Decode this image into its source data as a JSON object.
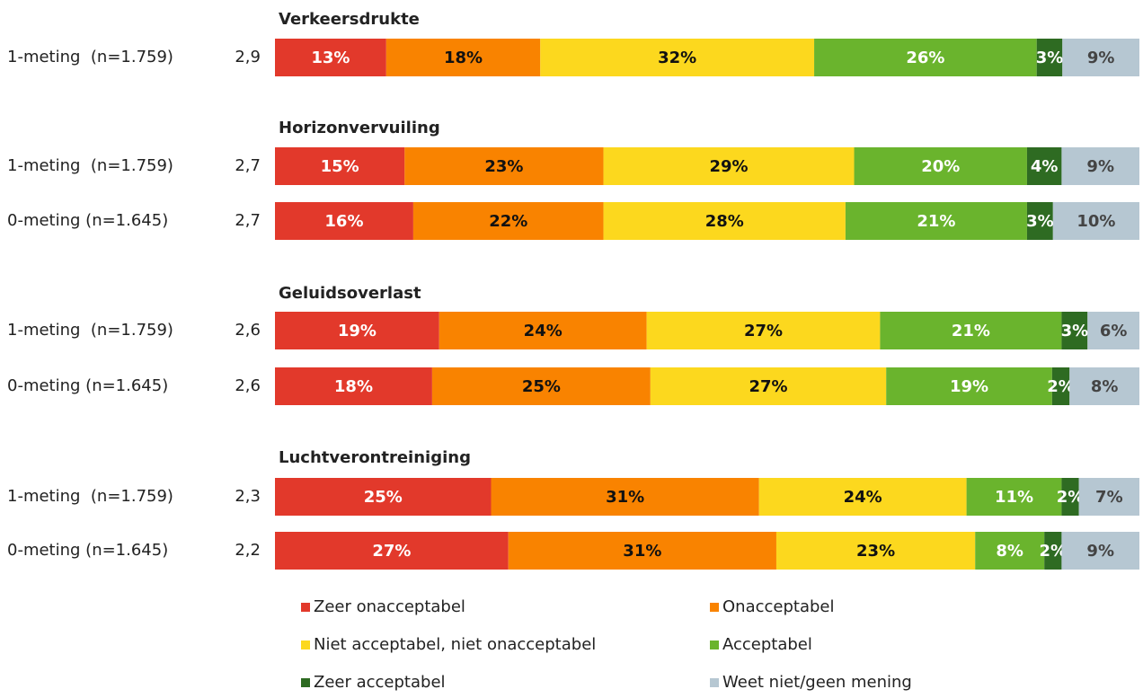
{
  "chart_data": [
    {
      "type": "stacked-bar",
      "title": "Verkeersdrukte",
      "categories": [
        "1-meting  (n=1.759)"
      ],
      "scores": [
        "2,9"
      ],
      "series": [
        {
          "name": "Zeer onacceptabel",
          "color": "#e2392b",
          "values": [
            13
          ],
          "value_labels": [
            "13%"
          ]
        },
        {
          "name": "Onacceptabel",
          "color": "#f98300",
          "values": [
            18
          ],
          "value_labels": [
            "18%"
          ]
        },
        {
          "name": "Niet acceptabel, niet onacceptabel",
          "color": "#fcd81e",
          "values": [
            32
          ],
          "value_labels": [
            "32%"
          ]
        },
        {
          "name": "Acceptabel",
          "color": "#6ab42d",
          "values": [
            26
          ],
          "value_labels": [
            "26%"
          ]
        },
        {
          "name": "Zeer acceptabel",
          "color": "#2e6b22",
          "values": [
            3
          ],
          "value_labels": [
            "3%"
          ]
        },
        {
          "name": "Weet niet/geen mening",
          "color": "#b6c7d2",
          "values": [
            9
          ],
          "value_labels": [
            "9%"
          ]
        }
      ]
    },
    {
      "type": "stacked-bar",
      "title": "Horizonvervuiling",
      "categories": [
        "1-meting  (n=1.759)",
        "0-meting (n=1.645)"
      ],
      "scores": [
        "2,7",
        "2,7"
      ],
      "series": [
        {
          "name": "Zeer onacceptabel",
          "color": "#e2392b",
          "values": [
            15,
            16
          ],
          "value_labels": [
            "15%",
            "16%"
          ]
        },
        {
          "name": "Onacceptabel",
          "color": "#f98300",
          "values": [
            23,
            22
          ],
          "value_labels": [
            "23%",
            "22%"
          ]
        },
        {
          "name": "Niet acceptabel, niet onacceptabel",
          "color": "#fcd81e",
          "values": [
            29,
            28
          ],
          "value_labels": [
            "29%",
            "28%"
          ]
        },
        {
          "name": "Acceptabel",
          "color": "#6ab42d",
          "values": [
            20,
            21
          ],
          "value_labels": [
            "20%",
            "21%"
          ]
        },
        {
          "name": "Zeer acceptabel",
          "color": "#2e6b22",
          "values": [
            4,
            3
          ],
          "value_labels": [
            "4%",
            "3%"
          ]
        },
        {
          "name": "Weet niet/geen mening",
          "color": "#b6c7d2",
          "values": [
            9,
            10
          ],
          "value_labels": [
            "9%",
            "10%"
          ]
        }
      ]
    },
    {
      "type": "stacked-bar",
      "title": "Geluidsoverlast",
      "categories": [
        "1-meting  (n=1.759)",
        "0-meting (n=1.645)"
      ],
      "scores": [
        "2,6",
        "2,6"
      ],
      "series": [
        {
          "name": "Zeer onacceptabel",
          "color": "#e2392b",
          "values": [
            19,
            18
          ],
          "value_labels": [
            "19%",
            "18%"
          ]
        },
        {
          "name": "Onacceptabel",
          "color": "#f98300",
          "values": [
            24,
            25
          ],
          "value_labels": [
            "24%",
            "25%"
          ]
        },
        {
          "name": "Niet acceptabel, niet onacceptabel",
          "color": "#fcd81e",
          "values": [
            27,
            27
          ],
          "value_labels": [
            "27%",
            "27%"
          ]
        },
        {
          "name": "Acceptabel",
          "color": "#6ab42d",
          "values": [
            21,
            19
          ],
          "value_labels": [
            "21%",
            "19%"
          ]
        },
        {
          "name": "Zeer acceptabel",
          "color": "#2e6b22",
          "values": [
            3,
            2
          ],
          "value_labels": [
            "3%",
            "2%"
          ]
        },
        {
          "name": "Weet niet/geen mening",
          "color": "#b6c7d2",
          "values": [
            6,
            8
          ],
          "value_labels": [
            "6%",
            "8%"
          ]
        }
      ]
    },
    {
      "type": "stacked-bar",
      "title": "Luchtverontreiniging",
      "categories": [
        "1-meting  (n=1.759)",
        "0-meting (n=1.645)"
      ],
      "scores": [
        "2,3",
        "2,2"
      ],
      "series": [
        {
          "name": "Zeer onacceptabel",
          "color": "#e2392b",
          "values": [
            25,
            27
          ],
          "value_labels": [
            "25%",
            "27%"
          ]
        },
        {
          "name": "Onacceptabel",
          "color": "#f98300",
          "values": [
            31,
            31
          ],
          "value_labels": [
            "31%",
            "31%"
          ]
        },
        {
          "name": "Niet acceptabel, niet onacceptabel",
          "color": "#fcd81e",
          "values": [
            24,
            23
          ],
          "value_labels": [
            "24%",
            "23%"
          ]
        },
        {
          "name": "Acceptabel",
          "color": "#6ab42d",
          "values": [
            11,
            8
          ],
          "value_labels": [
            "11%",
            "8%"
          ]
        },
        {
          "name": "Zeer acceptabel",
          "color": "#2e6b22",
          "values": [
            2,
            2
          ],
          "value_labels": [
            "2%",
            "2%"
          ]
        },
        {
          "name": "Weet niet/geen mening",
          "color": "#b6c7d2",
          "values": [
            7,
            9
          ],
          "value_labels": [
            "7%",
            "9%"
          ]
        }
      ]
    }
  ]
}
